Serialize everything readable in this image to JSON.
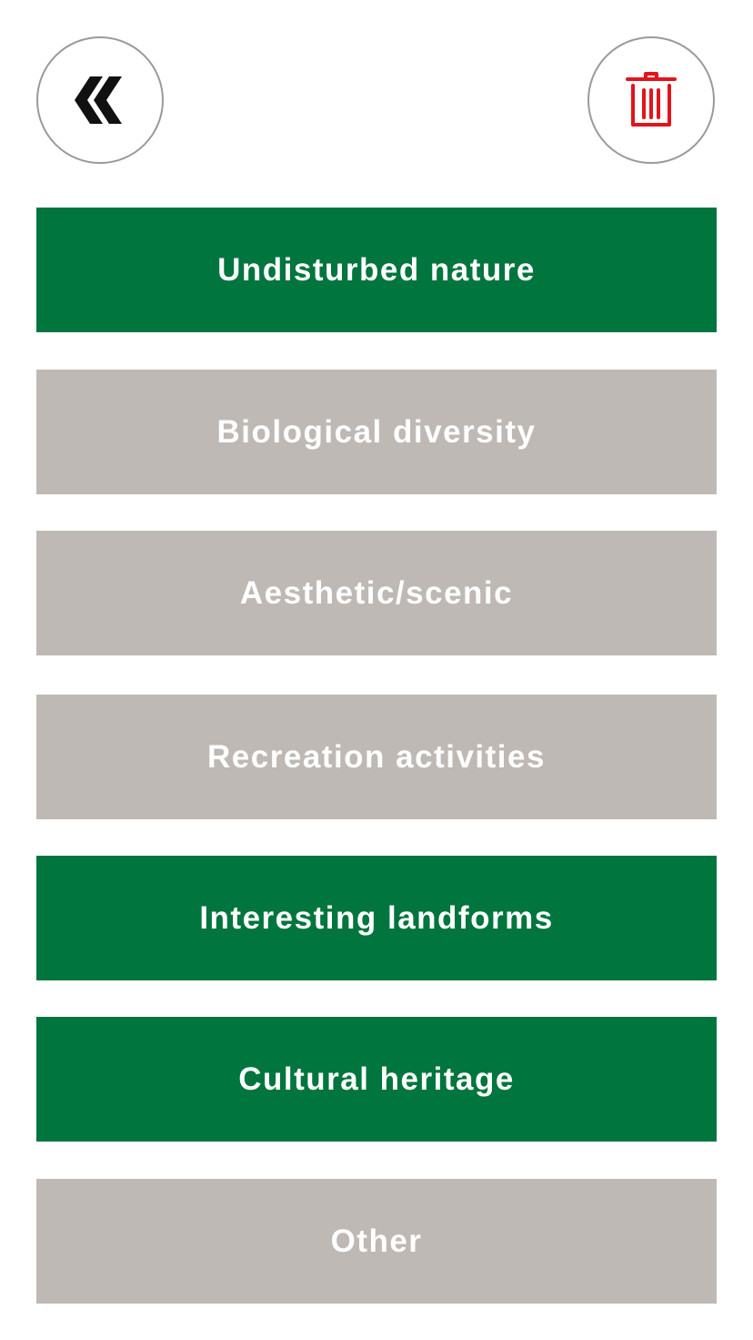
{
  "header": {
    "back_icon": "double-chevron-left-icon",
    "delete_icon": "trash-icon"
  },
  "colors": {
    "selected": "#00753d",
    "unselected": "#beb9b4",
    "delete_icon": "#e3141b",
    "back_icon": "#111111",
    "circle_border": "#9a9a9a"
  },
  "options": [
    {
      "label": "Undisturbed nature",
      "selected": true
    },
    {
      "label": "Biological diversity",
      "selected": false
    },
    {
      "label": "Aesthetic/scenic",
      "selected": false
    },
    {
      "label": "Recreation activities",
      "selected": false
    },
    {
      "label": "Interesting landforms",
      "selected": true
    },
    {
      "label": "Cultural heritage",
      "selected": true
    },
    {
      "label": "Other",
      "selected": false
    }
  ]
}
